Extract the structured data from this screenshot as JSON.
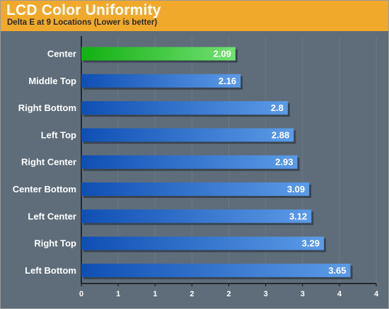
{
  "header": {
    "title": "LCD Color Uniformity",
    "subtitle": "Delta E at 9 Locations (Lower is better)"
  },
  "colors": {
    "header_bg": "#f1a92c",
    "plot_bg": "#5f6d7a",
    "highlight_bar": "#1fbf1f",
    "normal_bar": "#1f63c6"
  },
  "chart_data": {
    "type": "bar",
    "orientation": "horizontal",
    "title": "LCD Color Uniformity",
    "subtitle": "Delta E at 9 Locations (Lower is better)",
    "xlabel": "",
    "ylabel": "",
    "categories": [
      "Center",
      "Middle Top",
      "Right Bottom",
      "Left Top",
      "Right Center",
      "Center Bottom",
      "Left Center",
      "Right Top",
      "Left Bottom"
    ],
    "values": [
      2.09,
      2.16,
      2.8,
      2.88,
      2.93,
      3.09,
      3.12,
      3.29,
      3.65
    ],
    "value_labels": [
      "2.09",
      "2.16",
      "2.8",
      "2.88",
      "2.93",
      "3.09",
      "3.12",
      "3.29",
      "3.65"
    ],
    "highlight_index": 0,
    "xlim": [
      0,
      4
    ],
    "x_ticks": [
      0,
      0.5,
      1,
      1.5,
      2,
      2.5,
      3,
      3.5,
      4
    ],
    "x_tick_labels": [
      "0",
      "1",
      "1",
      "2",
      "2",
      "3",
      "3",
      "4",
      "4"
    ],
    "grid": true,
    "legend": "none"
  }
}
